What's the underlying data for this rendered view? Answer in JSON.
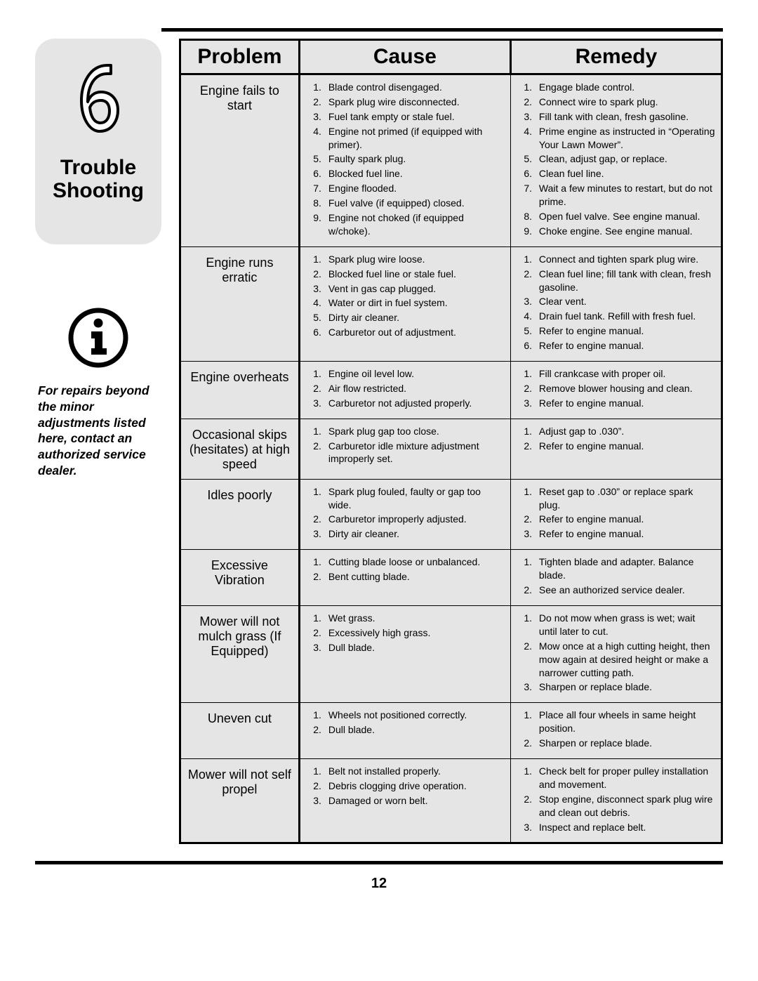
{
  "pageNumber": "12",
  "chapterNumber": "6",
  "chapterTitleLine1": "Trouble",
  "chapterTitleLine2": "Shooting",
  "sidebarNote": "For repairs beyond the minor adjustments listed here, contact an authorized service dealer.",
  "colors": {
    "pageBg": "#ffffff",
    "cellBg": "#e5e5e5",
    "tabBg": "#e5e5e5",
    "border": "#000000",
    "text": "#000000"
  },
  "typography": {
    "chapterTitleFont": 30,
    "headerFont": 30,
    "problemFont": 18,
    "listFont": 14,
    "noteFont": 17.5,
    "pageNumFont": 20
  },
  "table": {
    "headers": [
      "Problem",
      "Cause",
      "Remedy"
    ],
    "columnWidths": [
      "22%",
      "39%",
      "39%"
    ],
    "rows": [
      {
        "problem": "Engine fails to start",
        "causes": [
          "Blade control disengaged.",
          "Spark plug wire disconnected.",
          "Fuel tank empty or stale fuel.",
          "Engine not primed (if equipped with primer).",
          "Faulty spark plug.",
          "Blocked fuel line.",
          "Engine flooded.",
          "Fuel valve (if equipped) closed.",
          "Engine not choked (if equipped w/choke)."
        ],
        "remedies": [
          "Engage blade control.",
          "Connect wire to spark plug.",
          "Fill tank with clean, fresh gasoline.",
          "Prime engine as instructed in “Operating Your Lawn Mower”.",
          "Clean, adjust gap, or replace.",
          "Clean fuel line.",
          "Wait a few minutes to restart, but do not prime.",
          "Open fuel valve. See engine manual.",
          "Choke engine. See engine manual."
        ]
      },
      {
        "problem": "Engine runs erratic",
        "causes": [
          "Spark plug wire loose.",
          "Blocked fuel line or stale fuel.",
          "Vent in gas cap plugged.",
          "Water or dirt in fuel system.",
          "Dirty air cleaner.",
          "Carburetor out of adjustment."
        ],
        "remedies": [
          "Connect and tighten spark plug wire.",
          "Clean fuel line; fill tank with clean, fresh gasoline.",
          "Clear vent.",
          "Drain fuel tank. Refill with fresh fuel.",
          "Refer to engine manual.",
          "Refer to engine manual."
        ]
      },
      {
        "problem": "Engine overheats",
        "causes": [
          "Engine oil level low.",
          "Air flow restricted.",
          "Carburetor not adjusted properly."
        ],
        "remedies": [
          "Fill crankcase with proper oil.",
          "Remove blower housing and clean.",
          "Refer to engine manual."
        ]
      },
      {
        "problem": "Occasional skips (hesitates) at high speed",
        "causes": [
          "Spark plug gap too close.",
          "Carburetor idle mixture adjustment improperly set."
        ],
        "remedies": [
          "Adjust gap to .030”.",
          "Refer to engine manual."
        ]
      },
      {
        "problem": "Idles poorly",
        "causes": [
          "Spark plug fouled, faulty or gap too wide.",
          "Carburetor improperly adjusted.",
          "Dirty air cleaner."
        ],
        "remedies": [
          "Reset gap to .030” or replace spark plug.",
          "Refer to engine manual.",
          "Refer to engine manual."
        ]
      },
      {
        "problem": "Excessive Vibration",
        "causes": [
          "Cutting blade loose or unbalanced.",
          "Bent cutting blade."
        ],
        "remedies": [
          "Tighten blade and adapter. Balance blade.",
          "See an authorized service dealer."
        ]
      },
      {
        "problem": "Mower will not mulch grass (If Equipped)",
        "causes": [
          "Wet grass.",
          "Excessively high grass.",
          "Dull blade."
        ],
        "remedies": [
          "Do not mow when grass is wet; wait until later to cut.",
          "Mow once at a high cutting height, then mow again at desired height or make a narrower cutting path.",
          "Sharpen or replace blade."
        ]
      },
      {
        "problem": "Uneven cut",
        "causes": [
          "Wheels not positioned correctly.",
          "Dull blade."
        ],
        "remedies": [
          "Place all four wheels in same height position.",
          "Sharpen or replace blade."
        ]
      },
      {
        "problem": "Mower will not self propel",
        "causes": [
          "Belt not installed properly.",
          "Debris clogging drive operation.",
          "Damaged or worn belt."
        ],
        "remedies": [
          "Check belt for proper pulley installation and movement.",
          "Stop engine, disconnect spark plug wire and clean out debris.",
          "Inspect and replace belt."
        ]
      }
    ]
  }
}
